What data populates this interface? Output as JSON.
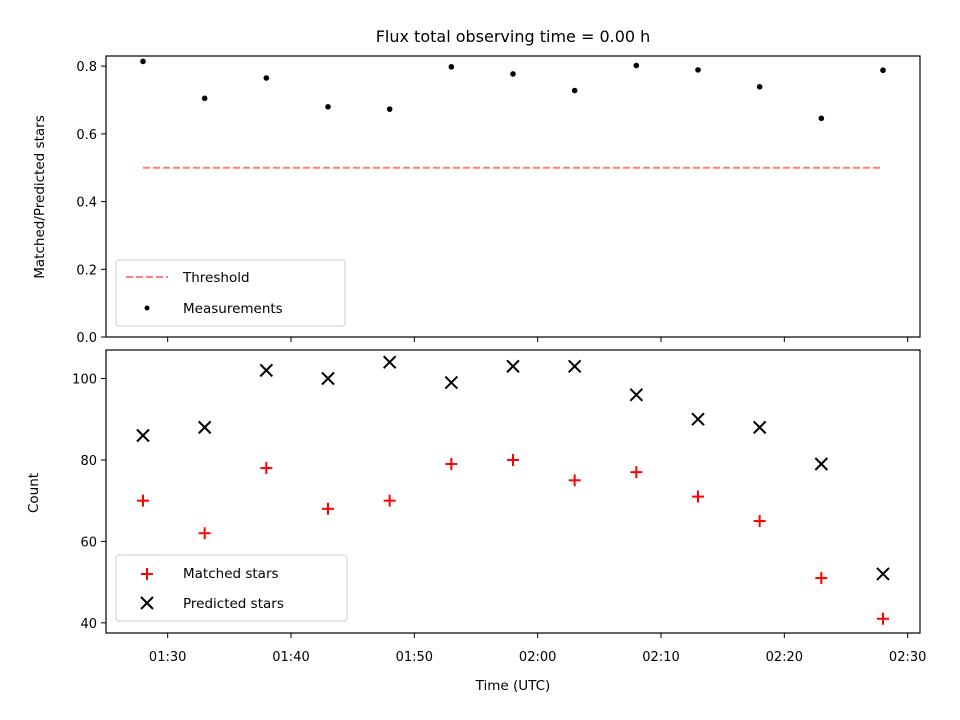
{
  "chart_data": {
    "type": "scatter",
    "title": "Flux total observing time = 0.00 h",
    "xlabel": "Time (UTC)",
    "x_tick_labels": [
      "01:30",
      "01:40",
      "01:50",
      "02:00",
      "02:10",
      "02:20",
      "02:30"
    ],
    "x_times": [
      "01:28",
      "01:33",
      "01:38",
      "01:43",
      "01:48",
      "01:53",
      "01:58",
      "02:03",
      "02:08",
      "02:13",
      "02:18",
      "02:23",
      "02:28"
    ],
    "x_tick_times": [
      "01:30",
      "01:40",
      "01:50",
      "02:00",
      "02:10",
      "02:20",
      "02:30"
    ],
    "xlim": [
      "01:25",
      "02:31"
    ],
    "panels": [
      {
        "ylabel": "Matched/Predicted stars",
        "ylim": [
          0.0,
          0.83
        ],
        "y_tick_labels": [
          "0.0",
          "0.2",
          "0.4",
          "0.6",
          "0.8"
        ],
        "y_ticks": [
          0.0,
          0.2,
          0.4,
          0.6,
          0.8
        ],
        "grid": false,
        "legend_position": "lower-left",
        "series": [
          {
            "name": "Threshold",
            "style": "dashed-line",
            "color": "#ff7f7f",
            "values": [
              0.5,
              0.5,
              0.5,
              0.5,
              0.5,
              0.5,
              0.5,
              0.5,
              0.5,
              0.5,
              0.5,
              0.5,
              0.5
            ]
          },
          {
            "name": "Measurements",
            "style": "dot",
            "color": "#000000",
            "values": [
              0.814,
              0.705,
              0.765,
              0.68,
              0.673,
              0.798,
              0.777,
              0.728,
              0.802,
              0.789,
              0.739,
              0.646,
              0.788
            ]
          }
        ]
      },
      {
        "ylabel": "Count",
        "ylim": [
          37.5,
          107
        ],
        "y_tick_labels": [
          "40",
          "60",
          "80",
          "100"
        ],
        "y_ticks": [
          40,
          60,
          80,
          100
        ],
        "grid": false,
        "legend_position": "lower-left",
        "series": [
          {
            "name": "Matched stars",
            "style": "plus",
            "color": "#ff0000",
            "values": [
              70,
              62,
              78,
              68,
              70,
              79,
              80,
              75,
              77,
              71,
              65,
              51,
              41
            ]
          },
          {
            "name": "Predicted stars",
            "style": "x",
            "color": "#000000",
            "values": [
              86,
              88,
              102,
              100,
              104,
              99,
              103,
              103,
              96,
              90,
              88,
              79,
              52
            ]
          }
        ]
      }
    ]
  }
}
